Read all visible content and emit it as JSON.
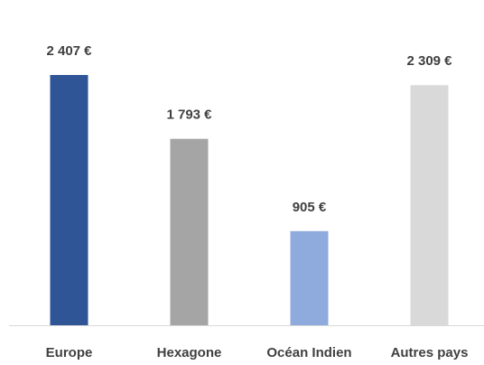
{
  "chart_data": {
    "type": "bar",
    "categories": [
      "Europe",
      "Hexagone",
      "Océan Indien",
      "Autres pays"
    ],
    "values": [
      2407,
      1793,
      905,
      2309
    ],
    "value_labels": [
      "2 407 €",
      "1 793 €",
      "905 €",
      "2 309 €"
    ],
    "colors": [
      "#2f5597",
      "#a5a5a5",
      "#8faadc",
      "#d9d9d9"
    ]
  }
}
